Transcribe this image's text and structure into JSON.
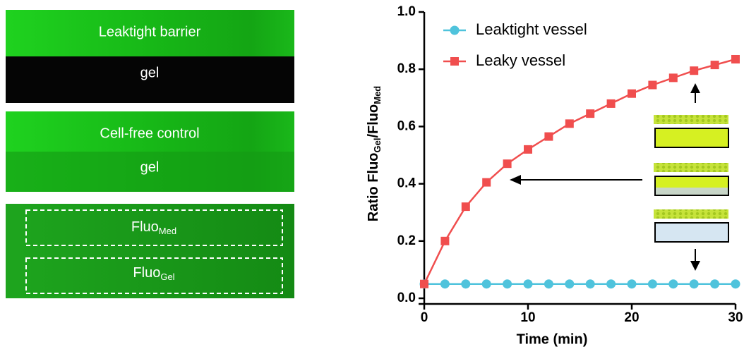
{
  "panels": [
    {
      "label": "Leaktight barrier",
      "sublabel": "gel"
    },
    {
      "label": "Cell-free control",
      "sublabel": "gel"
    },
    {
      "box1": {
        "text": "Fluo",
        "sub": "Med"
      },
      "box2": {
        "text": "Fluo",
        "sub": "Gel"
      }
    }
  ],
  "chart_data": {
    "type": "line",
    "xlabel": "Time (min)",
    "ylabel": {
      "text": "Ratio Fluo",
      "sub1": "Gel",
      "mid": "/Fluo",
      "sub2": "Med"
    },
    "x": [
      0,
      2,
      4,
      6,
      8,
      10,
      12,
      14,
      16,
      18,
      20,
      22,
      24,
      26,
      28,
      30
    ],
    "series": [
      {
        "name": "Leaktight vessel",
        "color": "#4fc3dc",
        "marker": "circle",
        "values": [
          0.05,
          0.05,
          0.05,
          0.05,
          0.05,
          0.05,
          0.05,
          0.05,
          0.05,
          0.05,
          0.05,
          0.05,
          0.05,
          0.05,
          0.05,
          0.05
        ]
      },
      {
        "name": "Leaky vessel",
        "color": "#f04e4e",
        "marker": "square",
        "values": [
          0.05,
          0.2,
          0.32,
          0.405,
          0.47,
          0.52,
          0.565,
          0.61,
          0.645,
          0.68,
          0.715,
          0.745,
          0.77,
          0.795,
          0.815,
          0.835
        ]
      }
    ],
    "xlim": [
      0,
      30
    ],
    "xticks": [
      0,
      10,
      20,
      30
    ],
    "ylim": [
      0,
      1
    ],
    "yticks": [
      {
        "value": 0,
        "label": "0.0"
      },
      0.2,
      0.4,
      0.6,
      0.8,
      {
        "value": 1,
        "label": "1.0"
      }
    ]
  }
}
